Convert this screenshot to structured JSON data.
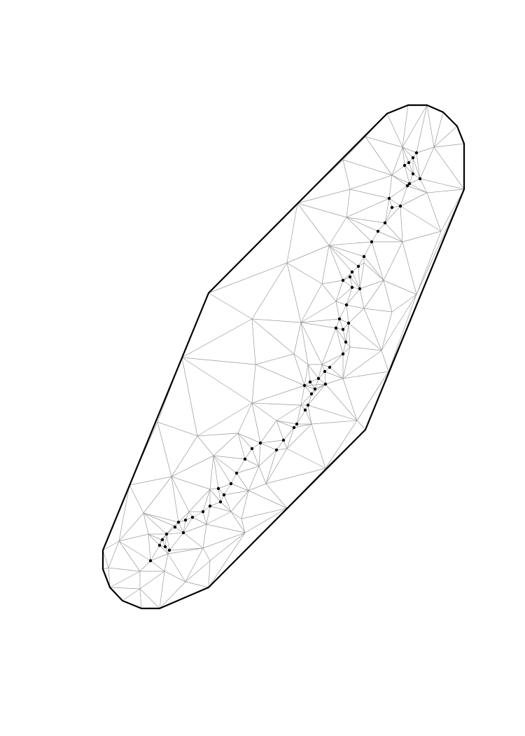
{
  "figure": {
    "kind": "triangular-mesh",
    "colors": {
      "background": "#ffffff",
      "boundary": "#000000",
      "edges": "#9a9a9a",
      "nodes": "#000000"
    }
  }
}
